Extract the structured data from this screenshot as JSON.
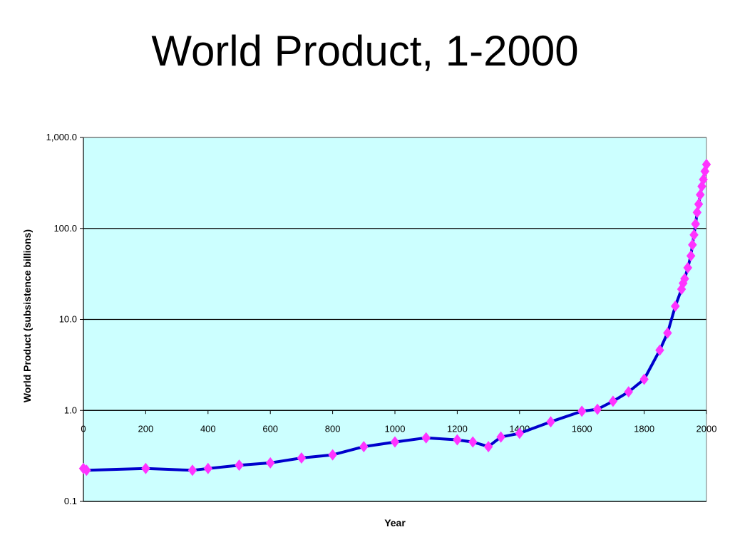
{
  "slide": {
    "title": "World Product, 1-2000"
  },
  "chart_data": {
    "type": "line",
    "title": "World Product, 1-2000",
    "xlabel": "Year",
    "ylabel": "World Product (subsistence billions)",
    "xlim": [
      0,
      2000
    ],
    "ylim": [
      0.1,
      1000
    ],
    "yscale": "log",
    "grid": "horizontal",
    "legend": "none",
    "plot_background": "#ccffff",
    "line_color": "#0000cc",
    "marker_color": "#ff33ff",
    "marker": "diamond",
    "x_ticks": [
      0,
      200,
      400,
      600,
      800,
      1000,
      1200,
      1400,
      1600,
      1800,
      2000
    ],
    "x_tick_labels": [
      "0",
      "200",
      "400",
      "600",
      "800",
      "1000",
      "1200",
      "1400",
      "1600",
      "1800",
      "2000"
    ],
    "y_ticks": [
      0.1,
      1,
      10,
      100,
      1000
    ],
    "y_tick_labels": [
      "0.1",
      "1.0",
      "10.0",
      "100.0",
      "1,000.0"
    ],
    "series": [
      {
        "x": [
          0,
          10,
          200,
          350,
          400,
          500,
          600,
          700,
          800,
          900,
          1000,
          1100,
          1200,
          1250,
          1300,
          1340,
          1400,
          1500,
          1600,
          1650,
          1700,
          1750,
          1800,
          1850,
          1875,
          1900,
          1920,
          1925,
          1930,
          1940,
          1950,
          1955,
          1960,
          1965,
          1970,
          1975,
          1980,
          1985,
          1990,
          1995,
          2000
        ],
        "y": [
          0.23,
          0.22,
          0.23,
          0.22,
          0.23,
          0.25,
          0.265,
          0.3,
          0.325,
          0.4,
          0.45,
          0.5,
          0.475,
          0.45,
          0.4,
          0.51,
          0.56,
          0.75,
          0.98,
          1.03,
          1.26,
          1.6,
          2.2,
          4.6,
          7.1,
          14,
          21.5,
          25,
          28,
          37,
          50,
          66,
          85,
          112,
          150,
          185,
          235,
          290,
          345,
          425,
          505
        ]
      }
    ]
  }
}
